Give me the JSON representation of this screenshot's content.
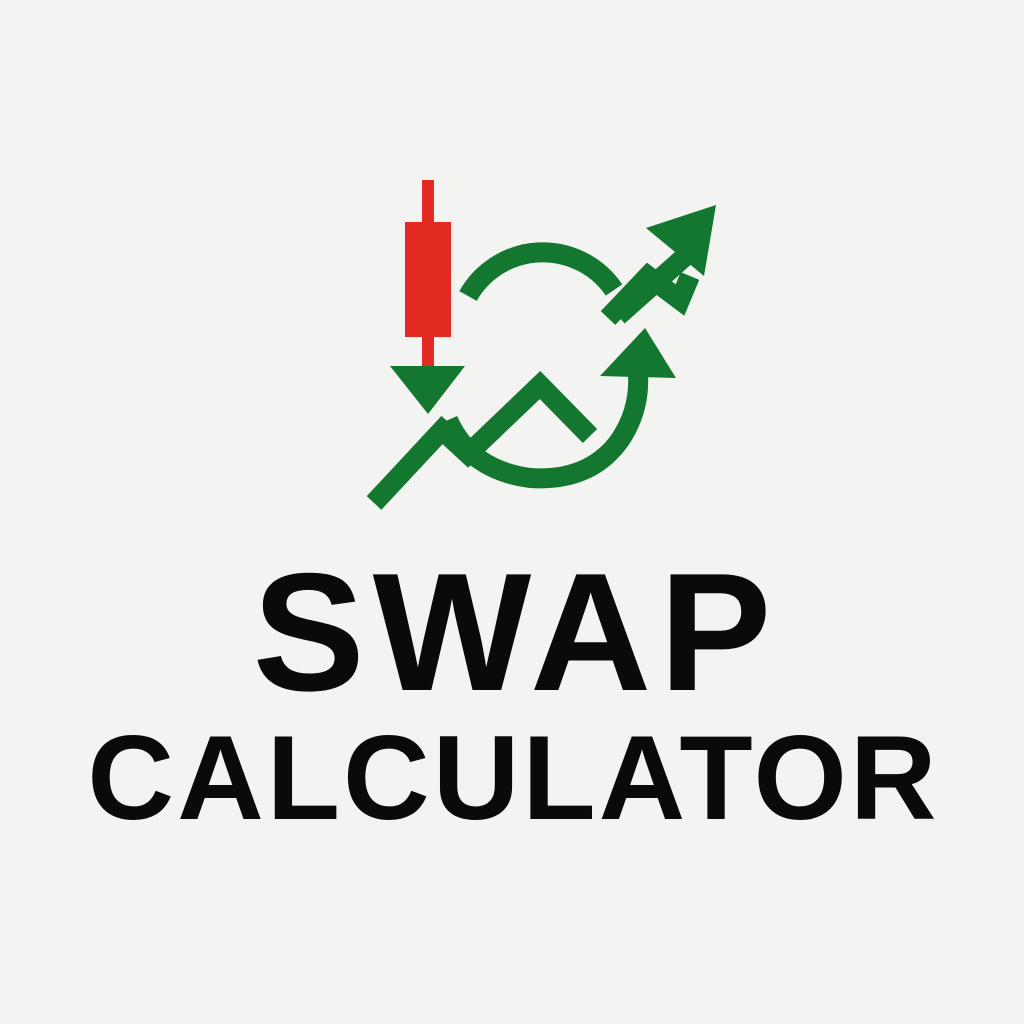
{
  "logo": {
    "candle_color": "#e32b23",
    "arrow_color": "#13772f",
    "icon_name": "swap-trend-arrows-icon"
  },
  "title": {
    "line1": "SWAP",
    "line2": "CALCULATOR",
    "color": "#0a0a0a"
  },
  "page": {
    "background": "#f3f3f1"
  }
}
